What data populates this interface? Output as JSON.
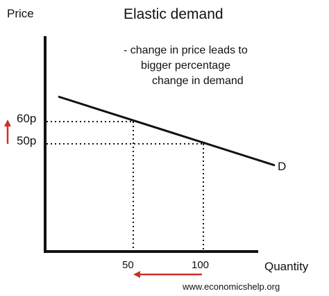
{
  "title": "Elastic demand",
  "y_axis_label": "Price",
  "x_axis_label": "Quantity",
  "note_lines": [
    "- change in price leads to",
    "bigger percentage",
    "change in demand"
  ],
  "curve_label": "D",
  "price_labels": {
    "high": "60p",
    "low": "50p"
  },
  "quantity_labels": {
    "low": "50",
    "high": "100"
  },
  "watermark": "www.economicshelp.org",
  "colors": {
    "arrow": "#c9302c",
    "ink": "#111111"
  },
  "chart_data": {
    "type": "line",
    "title": "Elastic demand",
    "xlabel": "Quantity",
    "ylabel": "Price",
    "series": [
      {
        "name": "D",
        "points": [
          {
            "x": 50,
            "y": 60
          },
          {
            "x": 100,
            "y": 50
          }
        ]
      }
    ],
    "annotations": [
      {
        "text": "60p",
        "kind": "y-tick"
      },
      {
        "text": "50p",
        "kind": "y-tick"
      },
      {
        "text": "50",
        "kind": "x-tick"
      },
      {
        "text": "100",
        "kind": "x-tick"
      },
      {
        "kind": "arrow",
        "axis": "price",
        "direction": "up"
      },
      {
        "kind": "arrow",
        "axis": "quantity",
        "direction": "left"
      }
    ]
  }
}
